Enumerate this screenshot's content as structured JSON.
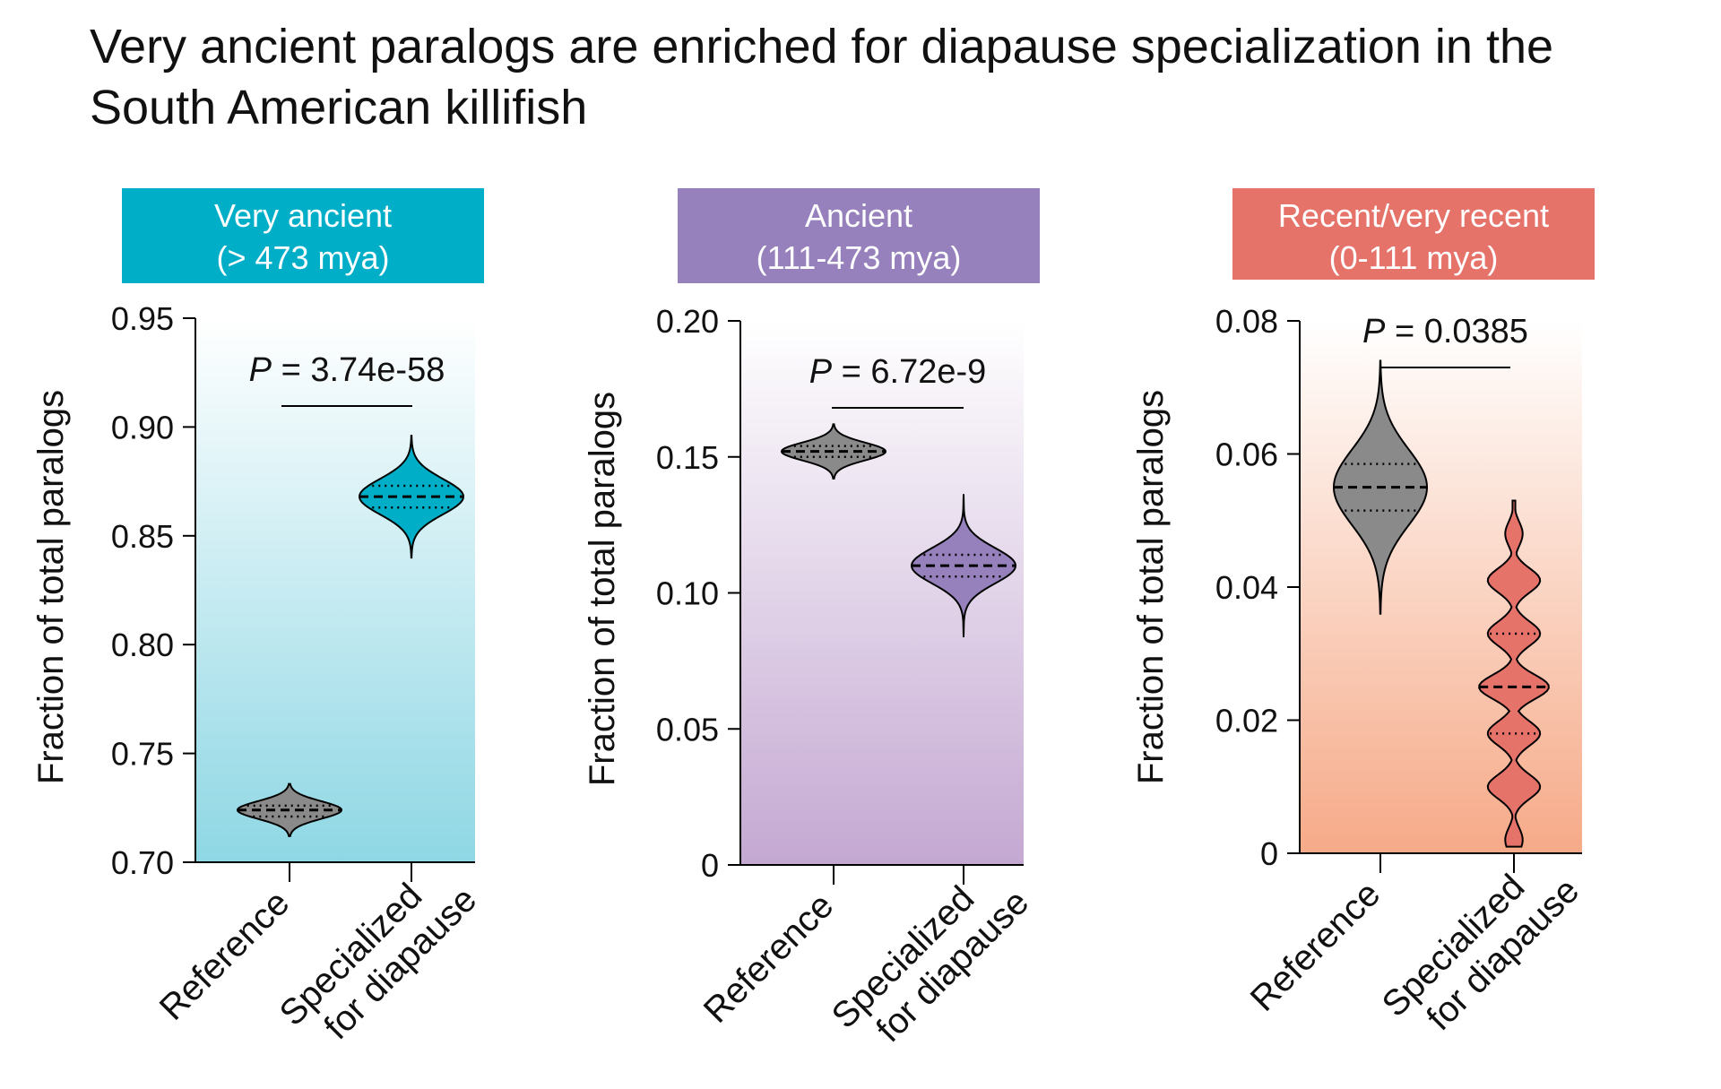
{
  "title_line1": "Very ancient paralogs are enriched for diapause specialization in the",
  "title_line2": "South American killifish",
  "chart_data": [
    {
      "type": "violin",
      "panel_title_line1": "Very ancient",
      "panel_title_line2": "(> 473 mya)",
      "header_color": "#00AEC8",
      "fill_color": "#00AEC8",
      "bg_gradient": [
        "#ffffff",
        "#8ED7E4"
      ],
      "ylabel": "Fraction of total paralogs",
      "ylim": [
        0.7,
        0.95
      ],
      "yticks": [
        0.7,
        0.75,
        0.8,
        0.85,
        0.9,
        0.95
      ],
      "ytick_labels": [
        "0.70",
        "0.75",
        "0.80",
        "0.85",
        "0.90",
        "0.95"
      ],
      "categories": [
        "Reference",
        "Specialized for diapause"
      ],
      "pvalue_label": "P",
      "pvalue_text": " = 3.74e-58",
      "violins": [
        {
          "category": "Reference",
          "min": 0.712,
          "max": 0.736,
          "median": 0.724,
          "q1": 0.721,
          "q3": 0.726,
          "color": "#8A8A8A"
        },
        {
          "category": "Specialized for diapause",
          "min": 0.84,
          "max": 0.896,
          "median": 0.868,
          "q1": 0.863,
          "q3": 0.873,
          "color": "#00AEC8"
        }
      ]
    },
    {
      "type": "violin",
      "panel_title_line1": "Ancient",
      "panel_title_line2": "(111-473 mya)",
      "header_color": "#9681BC",
      "fill_color": "#9681BC",
      "bg_gradient": [
        "#ffffff",
        "#C4A8D2"
      ],
      "ylabel": "Fraction of total paralogs",
      "ylim": [
        0,
        0.2
      ],
      "yticks": [
        0,
        0.05,
        0.1,
        0.15,
        0.2
      ],
      "ytick_labels": [
        "0",
        "0.05",
        "0.10",
        "0.15",
        "0.20"
      ],
      "categories": [
        "Reference",
        "Specialized for diapause"
      ],
      "pvalue_label": "P",
      "pvalue_text": " = 6.72e-9",
      "violins": [
        {
          "category": "Reference",
          "min": 0.142,
          "max": 0.162,
          "median": 0.152,
          "q1": 0.15,
          "q3": 0.154,
          "color": "#8A8A8A"
        },
        {
          "category": "Specialized for diapause",
          "min": 0.084,
          "max": 0.136,
          "median": 0.11,
          "q1": 0.106,
          "q3": 0.114,
          "color": "#9681BC"
        }
      ]
    },
    {
      "type": "violin",
      "panel_title_line1": "Recent/very recent",
      "panel_title_line2": "(0-111 mya)",
      "header_color": "#E6736A",
      "fill_color": "#E6736A",
      "bg_gradient": [
        "#ffffff",
        "#F6AA88"
      ],
      "ylabel": "Fraction of total paralogs",
      "ylim": [
        0,
        0.08
      ],
      "yticks": [
        0,
        0.02,
        0.04,
        0.06,
        0.08
      ],
      "ytick_labels": [
        "0",
        "0.02",
        "0.04",
        "0.06",
        "0.08"
      ],
      "categories": [
        "Reference",
        "Specialized for diapause"
      ],
      "pvalue_label": "P",
      "pvalue_text": " = 0.0385",
      "violins": [
        {
          "category": "Reference",
          "min": 0.036,
          "max": 0.074,
          "median": 0.055,
          "q1": 0.0515,
          "q3": 0.0585,
          "color": "#8A8A8A"
        },
        {
          "category": "Specialized for diapause",
          "min": 0.001,
          "max": 0.053,
          "median": 0.025,
          "q1": 0.018,
          "q3": 0.033,
          "color": "#E6736A",
          "modes": [
            0.002,
            0.01,
            0.018,
            0.025,
            0.033,
            0.041,
            0.048
          ]
        }
      ]
    }
  ]
}
